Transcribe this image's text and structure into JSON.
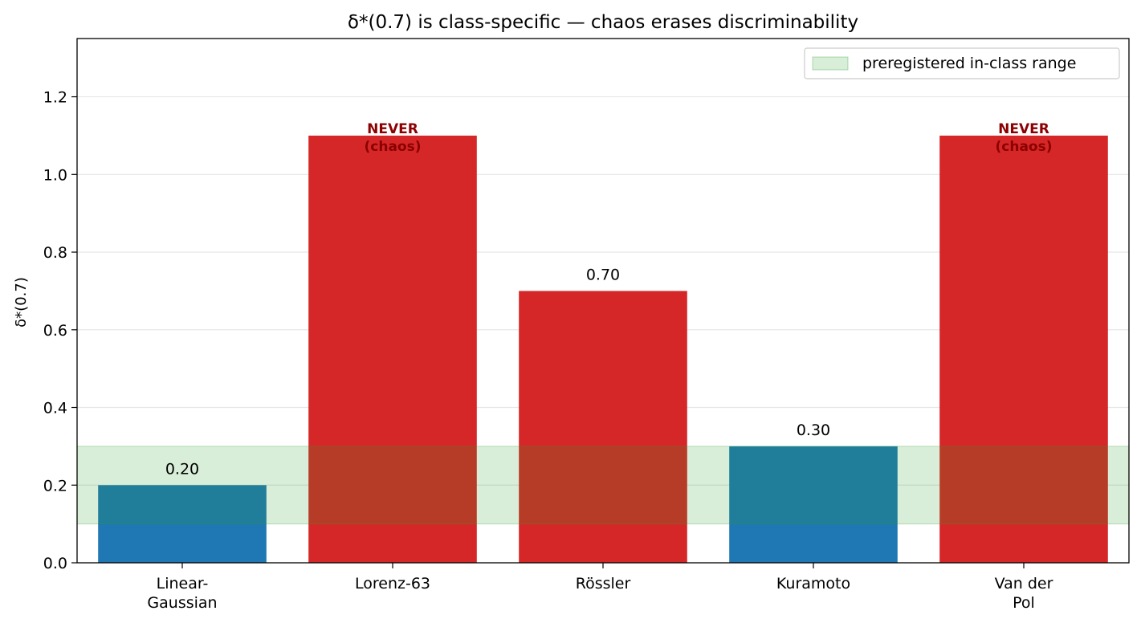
{
  "chart_data": {
    "type": "bar",
    "title": "δ*(0.7) is class-specific — chaos erases discriminability",
    "xlabel": "",
    "ylabel": "δ*(0.7)",
    "ylim": [
      0,
      1.35
    ],
    "yticks": [
      "0.0",
      "0.2",
      "0.4",
      "0.6",
      "0.8",
      "1.0",
      "1.2"
    ],
    "ytick_values": [
      0,
      0.2,
      0.4,
      0.6,
      0.8,
      1.0,
      1.2
    ],
    "grid": "horizontal",
    "legend_position": "top-right",
    "categories": [
      {
        "label_lines": [
          "Linear-",
          "Gaussian"
        ]
      },
      {
        "label_lines": [
          "Lorenz-63"
        ]
      },
      {
        "label_lines": [
          "Rössler"
        ]
      },
      {
        "label_lines": [
          "Kuramoto"
        ]
      },
      {
        "label_lines": [
          "Van der",
          "Pol"
        ]
      }
    ],
    "values": [
      0.2,
      1.1,
      0.7,
      0.3,
      1.1
    ],
    "bar_colors": [
      "#1f77b4",
      "#d62728",
      "#d62728",
      "#1f77b4",
      "#d62728"
    ],
    "bar_labels": [
      {
        "lines": [
          "0.20"
        ],
        "style": "value"
      },
      {
        "lines": [
          "NEVER",
          "(chaos)"
        ],
        "style": "never"
      },
      {
        "lines": [
          "0.70"
        ],
        "style": "value"
      },
      {
        "lines": [
          "0.30"
        ],
        "style": "value"
      },
      {
        "lines": [
          "NEVER",
          "(chaos)"
        ],
        "style": "never"
      }
    ],
    "band": {
      "y0": 0.1,
      "y1": 0.3,
      "color": "#2ca02c",
      "label": "preregistered in-class range"
    },
    "colors": {
      "never_text": "#8b0000",
      "grid": "#e6e6e6"
    }
  }
}
